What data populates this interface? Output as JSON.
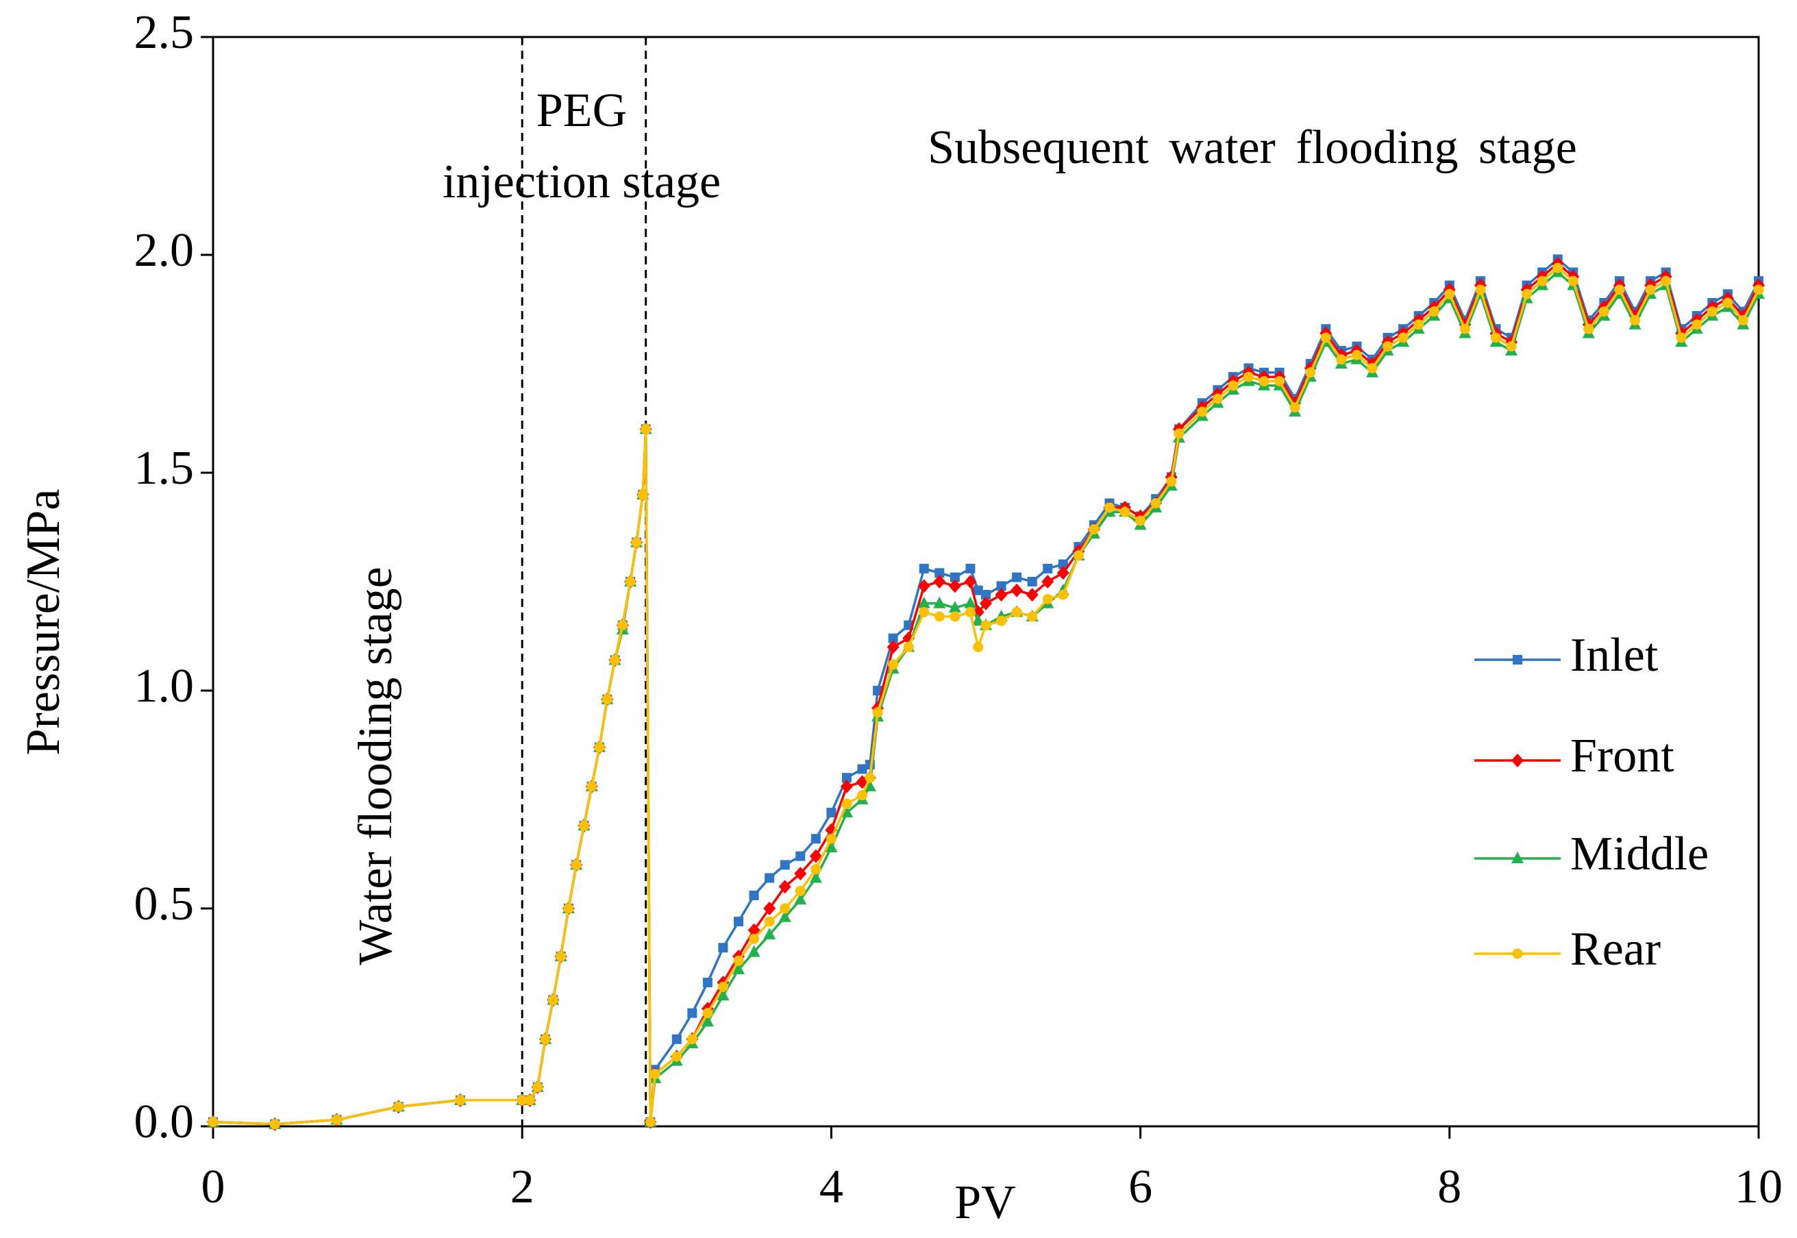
{
  "chart_data": {
    "type": "line",
    "x_label": "PV",
    "y_label": "Pressure/MPa",
    "annotations": [
      "PEG",
      "injection stage",
      "Subsequent water flooding stage",
      "Water flooding stage"
    ],
    "stage_boundaries": [
      2,
      2.8
    ],
    "xlim": [
      0,
      10
    ],
    "xticks": [
      0,
      2,
      4,
      6,
      8,
      10
    ],
    "ylim": [
      0,
      2.5
    ],
    "yticks": [
      {
        "value": 0,
        "label": "0.0"
      },
      0.5,
      {
        "value": 1,
        "label": "1.0"
      },
      1.5,
      {
        "value": 2,
        "label": "2.0"
      },
      2.5
    ],
    "legend": "right",
    "x": [
      0,
      0.4,
      0.8,
      1.2,
      1.6,
      2.0,
      2.05,
      2.1,
      2.15,
      2.2,
      2.25,
      2.3,
      2.35,
      2.4,
      2.45,
      2.5,
      2.55,
      2.6,
      2.65,
      2.7,
      2.74,
      2.78,
      2.8,
      2.83,
      2.86,
      3.0,
      3.1,
      3.2,
      3.3,
      3.4,
      3.5,
      3.6,
      3.7,
      3.8,
      3.9,
      4.0,
      4.1,
      4.2,
      4.25,
      4.3,
      4.4,
      4.5,
      4.6,
      4.7,
      4.8,
      4.9,
      4.95,
      5.0,
      5.1,
      5.2,
      5.3,
      5.4,
      5.5,
      5.6,
      5.7,
      5.8,
      5.9,
      6.0,
      6.1,
      6.2,
      6.25,
      6.4,
      6.5,
      6.6,
      6.7,
      6.8,
      6.9,
      7.0,
      7.1,
      7.2,
      7.3,
      7.4,
      7.5,
      7.6,
      7.7,
      7.8,
      7.9,
      8.0,
      8.1,
      8.2,
      8.3,
      8.4,
      8.5,
      8.6,
      8.7,
      8.8,
      8.9,
      9.0,
      9.1,
      9.2,
      9.3,
      9.4,
      9.5,
      9.6,
      9.7,
      9.8,
      9.9,
      10.0
    ],
    "series": [
      {
        "name": "Inlet",
        "color": "#2e75c5",
        "marker": "square",
        "values": [
          0.01,
          0.005,
          0.015,
          0.045,
          0.06,
          0.06,
          0.06,
          0.09,
          0.2,
          0.29,
          0.39,
          0.5,
          0.6,
          0.69,
          0.78,
          0.87,
          0.98,
          1.07,
          1.15,
          1.25,
          1.34,
          1.45,
          1.6,
          0.01,
          0.13,
          0.2,
          0.26,
          0.33,
          0.41,
          0.47,
          0.53,
          0.57,
          0.6,
          0.62,
          0.66,
          0.72,
          0.8,
          0.82,
          0.83,
          1.0,
          1.12,
          1.15,
          1.28,
          1.27,
          1.26,
          1.28,
          1.23,
          1.22,
          1.24,
          1.26,
          1.25,
          1.28,
          1.29,
          1.33,
          1.38,
          1.43,
          1.42,
          1.4,
          1.44,
          1.49,
          1.6,
          1.66,
          1.69,
          1.72,
          1.74,
          1.73,
          1.73,
          1.67,
          1.75,
          1.83,
          1.78,
          1.79,
          1.76,
          1.81,
          1.83,
          1.86,
          1.89,
          1.93,
          1.85,
          1.94,
          1.83,
          1.81,
          1.93,
          1.96,
          1.99,
          1.96,
          1.85,
          1.89,
          1.94,
          1.87,
          1.94,
          1.96,
          1.83,
          1.86,
          1.89,
          1.91,
          1.87,
          1.94
        ]
      },
      {
        "name": "Front",
        "color": "#ff0000",
        "marker": "diamond",
        "values": [
          0.01,
          0.005,
          0.015,
          0.045,
          0.06,
          0.06,
          0.06,
          0.09,
          0.2,
          0.29,
          0.39,
          0.5,
          0.6,
          0.69,
          0.78,
          0.87,
          0.98,
          1.07,
          1.15,
          1.25,
          1.34,
          1.45,
          1.6,
          0.01,
          0.12,
          0.16,
          0.2,
          0.27,
          0.33,
          0.39,
          0.45,
          0.5,
          0.55,
          0.58,
          0.62,
          0.68,
          0.78,
          0.79,
          0.8,
          0.96,
          1.1,
          1.12,
          1.24,
          1.25,
          1.24,
          1.25,
          1.18,
          1.2,
          1.22,
          1.23,
          1.22,
          1.25,
          1.27,
          1.32,
          1.37,
          1.42,
          1.42,
          1.4,
          1.43,
          1.49,
          1.6,
          1.65,
          1.68,
          1.71,
          1.73,
          1.72,
          1.72,
          1.66,
          1.74,
          1.82,
          1.77,
          1.78,
          1.75,
          1.8,
          1.82,
          1.85,
          1.88,
          1.92,
          1.84,
          1.93,
          1.82,
          1.8,
          1.92,
          1.95,
          1.98,
          1.95,
          1.84,
          1.88,
          1.93,
          1.86,
          1.93,
          1.95,
          1.82,
          1.85,
          1.88,
          1.9,
          1.86,
          1.93
        ]
      },
      {
        "name": "Middle",
        "color": "#22b14c",
        "marker": "triangle",
        "values": [
          0.01,
          0.005,
          0.015,
          0.045,
          0.06,
          0.06,
          0.06,
          0.09,
          0.2,
          0.29,
          0.39,
          0.5,
          0.6,
          0.69,
          0.78,
          0.87,
          0.98,
          1.07,
          1.14,
          1.25,
          1.34,
          1.45,
          1.6,
          0.01,
          0.11,
          0.15,
          0.19,
          0.24,
          0.3,
          0.36,
          0.4,
          0.44,
          0.48,
          0.52,
          0.57,
          0.64,
          0.72,
          0.75,
          0.78,
          0.94,
          1.05,
          1.1,
          1.2,
          1.2,
          1.19,
          1.2,
          1.16,
          1.15,
          1.17,
          1.18,
          1.17,
          1.2,
          1.23,
          1.31,
          1.36,
          1.41,
          1.41,
          1.38,
          1.42,
          1.47,
          1.58,
          1.63,
          1.66,
          1.69,
          1.71,
          1.7,
          1.7,
          1.64,
          1.72,
          1.8,
          1.75,
          1.76,
          1.73,
          1.78,
          1.8,
          1.83,
          1.86,
          1.9,
          1.82,
          1.91,
          1.8,
          1.78,
          1.9,
          1.93,
          1.96,
          1.93,
          1.82,
          1.86,
          1.91,
          1.84,
          1.91,
          1.93,
          1.8,
          1.83,
          1.86,
          1.88,
          1.84,
          1.91
        ]
      },
      {
        "name": "Rear",
        "color": "#ffc000",
        "marker": "circle",
        "values": [
          0.01,
          0.005,
          0.015,
          0.045,
          0.06,
          0.06,
          0.06,
          0.09,
          0.2,
          0.29,
          0.39,
          0.5,
          0.6,
          0.69,
          0.78,
          0.87,
          0.98,
          1.07,
          1.15,
          1.25,
          1.34,
          1.45,
          1.6,
          0.01,
          0.12,
          0.16,
          0.2,
          0.26,
          0.32,
          0.38,
          0.43,
          0.47,
          0.5,
          0.54,
          0.59,
          0.66,
          0.74,
          0.76,
          0.8,
          0.95,
          1.06,
          1.1,
          1.18,
          1.17,
          1.17,
          1.18,
          1.1,
          1.15,
          1.16,
          1.18,
          1.17,
          1.21,
          1.22,
          1.31,
          1.37,
          1.42,
          1.41,
          1.39,
          1.43,
          1.48,
          1.59,
          1.64,
          1.67,
          1.7,
          1.72,
          1.71,
          1.71,
          1.65,
          1.73,
          1.81,
          1.76,
          1.77,
          1.74,
          1.79,
          1.81,
          1.84,
          1.87,
          1.91,
          1.83,
          1.92,
          1.81,
          1.79,
          1.91,
          1.94,
          1.97,
          1.94,
          1.83,
          1.87,
          1.92,
          1.85,
          1.92,
          1.94,
          1.81,
          1.84,
          1.87,
          1.89,
          1.85,
          1.92
        ]
      }
    ]
  }
}
